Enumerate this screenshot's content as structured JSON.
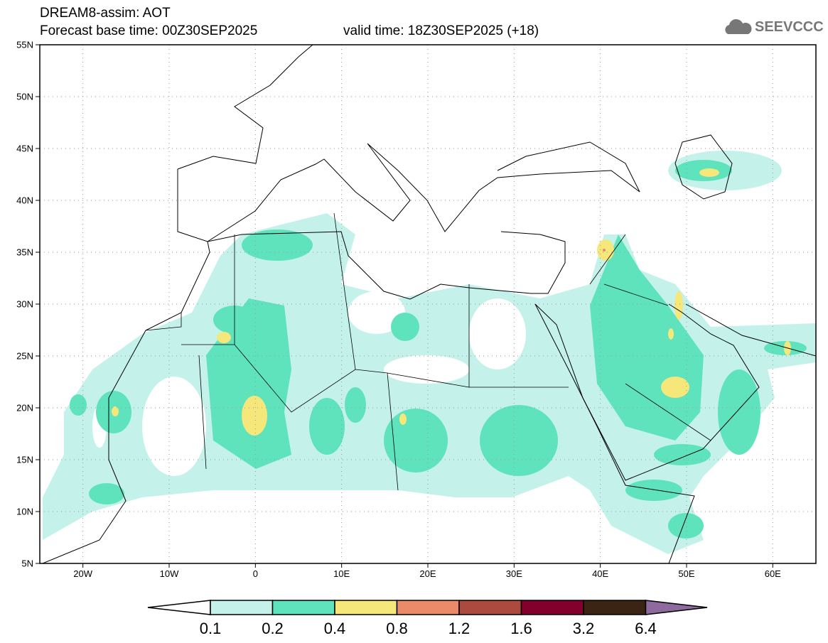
{
  "header": {
    "title": "DREAM8-assim: AOT",
    "base_time": "Forecast base time: 00Z30SEP2025",
    "valid_time": "valid time: 18Z30SEP2025 (+18)",
    "logo": "SEEVCCC"
  },
  "axes": {
    "lat_labels": [
      "55N",
      "50N",
      "45N",
      "40N",
      "35N",
      "30N",
      "25N",
      "20N",
      "15N",
      "10N",
      "5N"
    ],
    "lon_labels": [
      "20W",
      "10W",
      "0",
      "10E",
      "20E",
      "30E",
      "40E",
      "50E",
      "60E"
    ]
  },
  "colorbar": {
    "labels": [
      "0.1",
      "0.2",
      "0.4",
      "0.8",
      "1.2",
      "1.6",
      "3.2",
      "6.4"
    ],
    "colors": [
      "#ffffff",
      "#c4f2eb",
      "#5ee3bc",
      "#f6e77a",
      "#ea8a68",
      "#ac4a40",
      "#84002c",
      "#3b2414",
      "#8e6a9e"
    ]
  }
}
